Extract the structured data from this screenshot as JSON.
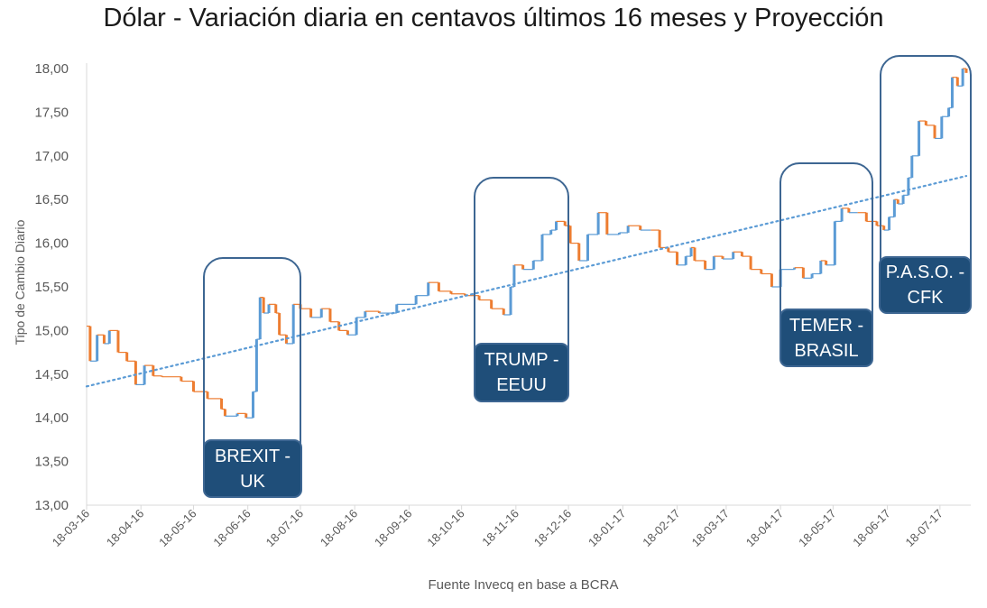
{
  "chart_data": {
    "type": "line",
    "style": "step (blue up-moves, orange down-moves) with dotted linear trend",
    "title": "Dólar - Variación diaria en centavos últimos 16 meses y Proyección",
    "xlabel": "Fuente Invecq en base a BCRA",
    "ylabel": "Tipo de Cambio Diario",
    "ylim": [
      13,
      18
    ],
    "yticks": [
      "13,00",
      "13,50",
      "14,00",
      "14,50",
      "15,00",
      "15,50",
      "16,00",
      "16,50",
      "17,00",
      "17,50",
      "18,00"
    ],
    "x_unit": "days since 18-03-16",
    "xlim": [
      0,
      502
    ],
    "xticks": [
      {
        "label": "18-03-16",
        "day": 0
      },
      {
        "label": "18-04-16",
        "day": 31
      },
      {
        "label": "18-05-16",
        "day": 61
      },
      {
        "label": "18-06-16",
        "day": 92
      },
      {
        "label": "18-07-16",
        "day": 122
      },
      {
        "label": "18-08-16",
        "day": 153
      },
      {
        "label": "18-09-16",
        "day": 184
      },
      {
        "label": "18-10-16",
        "day": 214
      },
      {
        "label": "18-11-16",
        "day": 245
      },
      {
        "label": "18-12-16",
        "day": 275
      },
      {
        "label": "18-01-17",
        "day": 306
      },
      {
        "label": "18-02-17",
        "day": 337
      },
      {
        "label": "18-03-17",
        "day": 365
      },
      {
        "label": "18-04-17",
        "day": 396
      },
      {
        "label": "18-05-17",
        "day": 426
      },
      {
        "label": "18-06-17",
        "day": 457
      },
      {
        "label": "18-07-17",
        "day": 487
      }
    ],
    "series": [
      {
        "name": "Tipo de cambio",
        "points": [
          [
            0,
            15.05
          ],
          [
            2,
            14.65
          ],
          [
            6,
            14.95
          ],
          [
            10,
            14.85
          ],
          [
            13,
            15.0
          ],
          [
            18,
            14.75
          ],
          [
            23,
            14.65
          ],
          [
            28,
            14.38
          ],
          [
            33,
            14.6
          ],
          [
            38,
            14.48
          ],
          [
            43,
            14.47
          ],
          [
            54,
            14.42
          ],
          [
            61,
            14.3
          ],
          [
            69,
            14.22
          ],
          [
            77,
            14.1
          ],
          [
            79,
            14.02
          ],
          [
            86,
            14.05
          ],
          [
            91,
            14.0
          ],
          [
            95,
            14.3
          ],
          [
            97,
            14.9
          ],
          [
            99,
            15.38
          ],
          [
            101,
            15.2
          ],
          [
            104,
            15.3
          ],
          [
            108,
            15.2
          ],
          [
            110,
            14.95
          ],
          [
            114,
            14.85
          ],
          [
            118,
            15.3
          ],
          [
            122,
            15.25
          ],
          [
            128,
            15.15
          ],
          [
            134,
            15.25
          ],
          [
            139,
            15.1
          ],
          [
            144,
            15.0
          ],
          [
            149,
            14.95
          ],
          [
            154,
            15.15
          ],
          [
            159,
            15.22
          ],
          [
            167,
            15.2
          ],
          [
            177,
            15.3
          ],
          [
            188,
            15.4
          ],
          [
            195,
            15.55
          ],
          [
            201,
            15.45
          ],
          [
            208,
            15.42
          ],
          [
            216,
            15.4
          ],
          [
            224,
            15.35
          ],
          [
            231,
            15.25
          ],
          [
            238,
            15.18
          ],
          [
            242,
            15.5
          ],
          [
            244,
            15.75
          ],
          [
            249,
            15.7
          ],
          [
            255,
            15.8
          ],
          [
            260,
            16.1
          ],
          [
            265,
            16.15
          ],
          [
            268,
            16.25
          ],
          [
            273,
            16.2
          ],
          [
            276,
            16.0
          ],
          [
            281,
            15.8
          ],
          [
            286,
            16.1
          ],
          [
            292,
            16.35
          ],
          [
            297,
            16.1
          ],
          [
            304,
            16.12
          ],
          [
            309,
            16.2
          ],
          [
            316,
            16.15
          ],
          [
            322,
            16.15
          ],
          [
            327,
            15.95
          ],
          [
            332,
            15.9
          ],
          [
            337,
            15.75
          ],
          [
            342,
            15.85
          ],
          [
            345,
            15.95
          ],
          [
            347,
            15.8
          ],
          [
            353,
            15.7
          ],
          [
            358,
            15.85
          ],
          [
            363,
            15.82
          ],
          [
            369,
            15.9
          ],
          [
            374,
            15.85
          ],
          [
            379,
            15.7
          ],
          [
            385,
            15.65
          ],
          [
            391,
            15.5
          ],
          [
            396,
            15.7
          ],
          [
            404,
            15.72
          ],
          [
            409,
            15.6
          ],
          [
            414,
            15.65
          ],
          [
            419,
            15.8
          ],
          [
            422,
            15.75
          ],
          [
            427,
            16.25
          ],
          [
            431,
            16.4
          ],
          [
            435,
            16.35
          ],
          [
            440,
            16.35
          ],
          [
            445,
            16.25
          ],
          [
            451,
            16.2
          ],
          [
            455,
            16.15
          ],
          [
            458,
            16.3
          ],
          [
            461,
            16.5
          ],
          [
            463,
            16.45
          ],
          [
            466,
            16.55
          ],
          [
            469,
            16.75
          ],
          [
            471,
            17.0
          ],
          [
            475,
            17.4
          ],
          [
            479,
            17.35
          ],
          [
            484,
            17.2
          ],
          [
            488,
            17.45
          ],
          [
            492,
            17.55
          ],
          [
            494,
            17.9
          ],
          [
            497,
            17.8
          ],
          [
            500,
            18.0
          ],
          [
            502,
            17.95
          ]
        ]
      }
    ],
    "trend": {
      "name": "Proyección (lineal)",
      "from": [
        0,
        14.36
      ],
      "to": [
        502,
        16.77
      ]
    },
    "colors": {
      "up": "#5B9BD5",
      "down": "#ED7D31",
      "trend": "#5B9BD5",
      "annotation": "#1F4E79"
    },
    "annotations": [
      {
        "label": "BREXIT - UK"
      },
      {
        "label": "TRUMP - EEUU"
      },
      {
        "label": "TEMER - BRASIL"
      },
      {
        "label": "P.A.S.O. - CFK"
      }
    ],
    "grid": false,
    "legend": "none"
  }
}
